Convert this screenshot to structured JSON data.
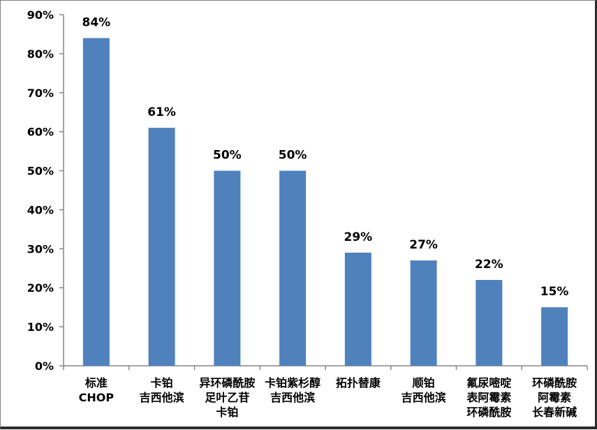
{
  "chart_data": {
    "type": "bar",
    "categories": [
      [
        "标准",
        "CHOP"
      ],
      [
        "卡铂",
        "吉西他滨"
      ],
      [
        "异环磷酰胺",
        "足叶乙苷",
        "卡铂"
      ],
      [
        "卡铂紫杉醇",
        "吉西他滨"
      ],
      [
        "拓扑替康"
      ],
      [
        "顺铂",
        "吉西他滨"
      ],
      [
        "氟尿嘧啶",
        "表阿霉素",
        "环磷酰胺"
      ],
      [
        "环磷酰胺",
        "阿霉素",
        "长春新碱"
      ]
    ],
    "values": [
      84,
      61,
      50,
      50,
      29,
      27,
      22,
      15
    ],
    "data_labels": [
      "84%",
      "61%",
      "50%",
      "50%",
      "29%",
      "27%",
      "22%",
      "15%"
    ],
    "y_ticks": [
      "0%",
      "10%",
      "20%",
      "30%",
      "40%",
      "50%",
      "60%",
      "70%",
      "80%",
      "90%"
    ],
    "ylim": [
      0,
      90
    ],
    "bar_color": "#4f81bd",
    "grid": false,
    "title": "",
    "xlabel": "",
    "ylabel": ""
  }
}
